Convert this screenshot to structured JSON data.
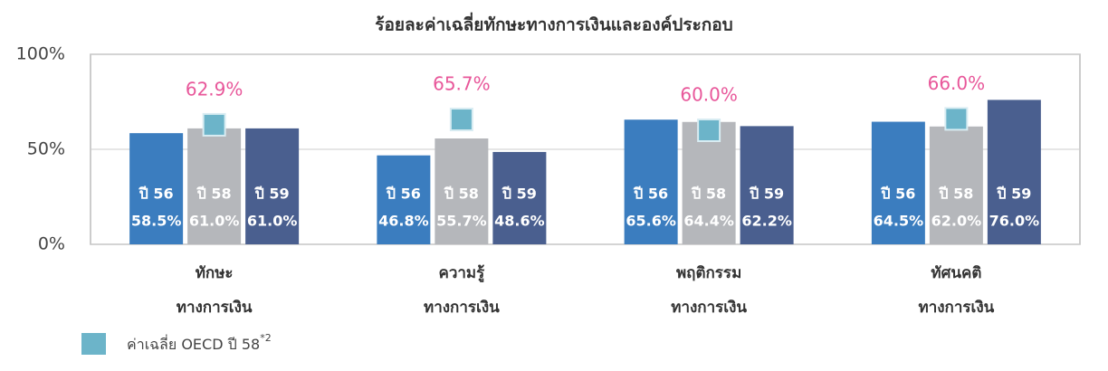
{
  "chart_data": {
    "type": "bar",
    "title": "ร้อยละค่าเฉลี่ยทักษะทางการเงินและองค์ประกอบ",
    "categories": [
      [
        "ทักษะ",
        "ทางการเงิน"
      ],
      [
        "ความรู้",
        "ทางการเงิน"
      ],
      [
        "พฤติกรรม",
        "ทางการเงิน"
      ],
      [
        "ทัศนคติ",
        "ทางการเงิน"
      ]
    ],
    "series": [
      {
        "name": "ปี 56",
        "color": "#3b7dbf",
        "values": [
          58.5,
          46.8,
          65.6,
          64.5
        ],
        "value_labels": [
          "58.5%",
          "46.8%",
          "65.6%",
          "64.5%"
        ]
      },
      {
        "name": "ปี 58",
        "color": "#b5b7bb",
        "values": [
          61.0,
          55.7,
          64.4,
          62.0
        ],
        "value_labels": [
          "61.0%",
          "55.7%",
          "64.4%",
          "62.0%"
        ]
      },
      {
        "name": "ปี 59",
        "color": "#4a5f8f",
        "values": [
          61.0,
          48.6,
          62.2,
          76.0
        ],
        "value_labels": [
          "61.0%",
          "48.6%",
          "62.2%",
          "76.0%"
        ]
      }
    ],
    "average": {
      "name": "ค่าเฉลี่ย OECD ปี 58",
      "name_note": "*2",
      "color": "#6cb4c9",
      "label_color": "#e8579a",
      "marker": "square",
      "values": [
        62.9,
        65.7,
        60.0,
        66.0
      ],
      "value_labels": [
        "62.9%",
        "65.7%",
        "60.0%",
        "66.0%"
      ]
    },
    "ylim": [
      0,
      100
    ],
    "yticks": [
      {
        "value": 0,
        "label": "0%"
      },
      {
        "value": 50,
        "label": "50%"
      },
      {
        "value": 100,
        "label": "100%"
      }
    ],
    "grid": true
  }
}
